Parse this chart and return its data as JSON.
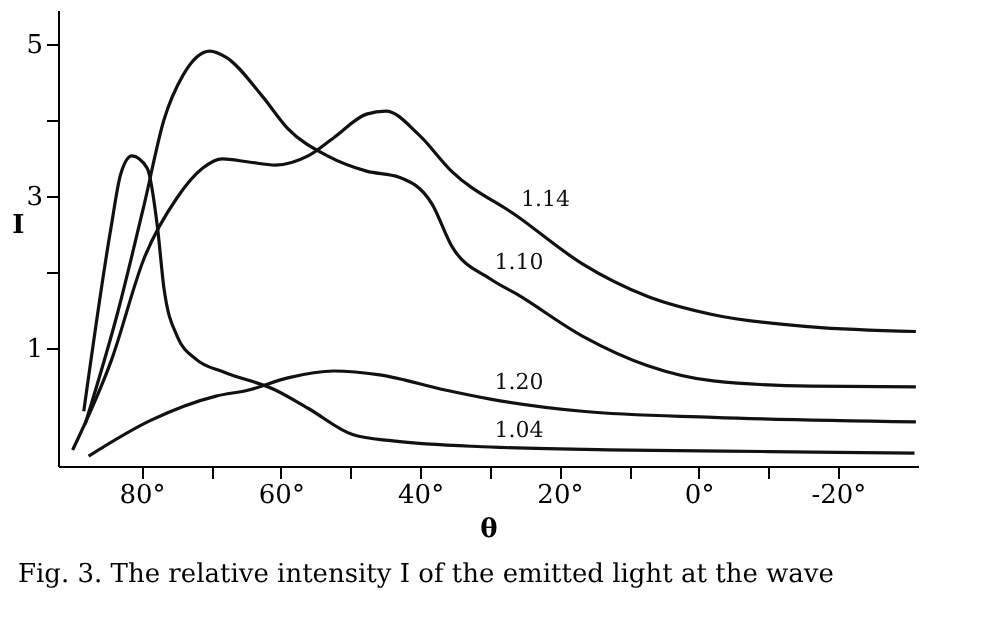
{
  "chart_data": {
    "type": "line",
    "xlabel": "θ",
    "ylabel": "I",
    "xlim": [
      92,
      -31.5
    ],
    "ylim": [
      -0.55,
      5.45
    ],
    "xticks": [
      {
        "value": 80,
        "label": "80°"
      },
      {
        "value": 70,
        "label": null
      },
      {
        "value": 60,
        "label": "60°"
      },
      {
        "value": 50,
        "label": null
      },
      {
        "value": 40,
        "label": "40°"
      },
      {
        "value": 30,
        "label": null
      },
      {
        "value": 20,
        "label": "20°"
      },
      {
        "value": 10,
        "label": null
      },
      {
        "value": 0,
        "label": "0°"
      },
      {
        "value": -10,
        "label": null
      },
      {
        "value": -20,
        "label": "-20°"
      }
    ],
    "yticks": [
      1,
      {
        "value": 2,
        "label": null
      },
      3,
      {
        "value": 4,
        "label": null
      },
      5
    ],
    "grid": false,
    "marker": "none",
    "line_style": "solid",
    "series": [
      {
        "name": "1.04",
        "color": "#111111",
        "x": [
          88.3,
          84.4,
          83,
          81.4,
          79.2,
          77.7,
          76.8,
          74.9,
          72.1,
          68.3,
          60.8,
          56.1,
          49.6,
          43.9,
          29.9,
          10,
          -10,
          -31
        ],
        "values": [
          0.17,
          2.58,
          3.29,
          3.53,
          3.37,
          2.58,
          1.8,
          1.16,
          0.85,
          0.69,
          0.45,
          0.21,
          -0.14,
          -0.22,
          -0.3,
          -0.34,
          -0.36,
          -0.38
        ]
      },
      {
        "name": "1.10",
        "color": "#111111",
        "x": [
          88.1,
          83.4,
          79.6,
          76.8,
          74,
          70.2,
          67.9,
          62.7,
          59,
          53.3,
          47.7,
          43,
          38.3,
          35.5,
          29.9,
          26.1,
          16.7,
          7.3,
          -2.1,
          -16.2,
          -31.2
        ],
        "values": [
          0.0,
          1.48,
          2.9,
          4.0,
          4.6,
          4.91,
          4.83,
          4.32,
          3.89,
          3.53,
          3.33,
          3.25,
          2.9,
          2.35,
          1.91,
          1.71,
          1.16,
          0.77,
          0.57,
          0.5,
          0.49
        ]
      },
      {
        "name": "1.14",
        "color": "#111111",
        "x": [
          89.9,
          84.3,
          79.6,
          74.9,
          71.2,
          68.4,
          64.6,
          60.8,
          56.1,
          52.4,
          47.7,
          44.9,
          40.2,
          35.5,
          26.1,
          16.7,
          7.3,
          -2.1,
          -16.2,
          -31.2
        ],
        "values": [
          -0.34,
          0.85,
          2.19,
          2.98,
          3.37,
          3.49,
          3.45,
          3.41,
          3.53,
          3.77,
          4.08,
          4.12,
          3.81,
          3.33,
          2.74,
          2.11,
          1.68,
          1.44,
          1.28,
          1.22
        ]
      },
      {
        "name": "1.20",
        "color": "#111111",
        "x": [
          87.6,
          78.7,
          69.3,
          64.6,
          59,
          52.4,
          45.8,
          36.4,
          29.9,
          16.7,
          -2.1,
          -31.2
        ],
        "values": [
          -0.42,
          0.05,
          0.37,
          0.45,
          0.61,
          0.7,
          0.65,
          0.45,
          0.33,
          0.17,
          0.09,
          0.03
        ]
      }
    ],
    "annotations": [
      "Fig. 3. The relative intensity I of the emitted light at the wave"
    ]
  }
}
